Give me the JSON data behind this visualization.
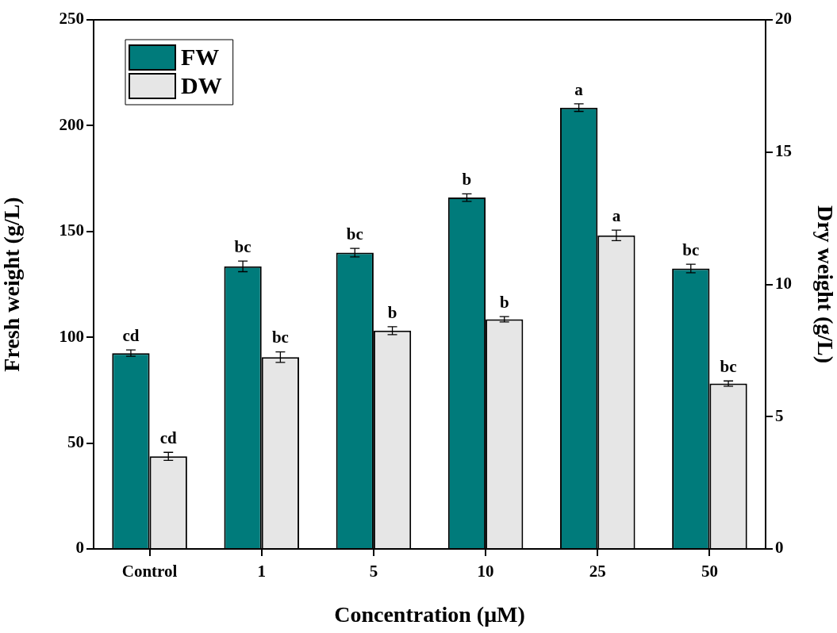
{
  "chart_data": {
    "type": "bar",
    "xlabel": "Concentration (μM)",
    "ylabel": "Fresh weight (g/L)",
    "y2label": "Dry weight (g/L)",
    "categories": [
      "Control",
      "1",
      "5",
      "10",
      "25",
      "50"
    ],
    "series": [
      {
        "name": "FW",
        "color": "#007b7b",
        "values": [
          92.5,
          133.5,
          140,
          166,
          208.5,
          132.5
        ],
        "errors": [
          1.5,
          2.5,
          2,
          1.8,
          1.8,
          2
        ],
        "value_labels": [
          "cd",
          "bc",
          "bc",
          "b",
          "a",
          "bc"
        ]
      },
      {
        "name": "DW",
        "color": "#e6e6e6",
        "axis": "y2",
        "values": [
          3.5,
          7.25,
          8.25,
          8.68,
          11.85,
          6.25
        ],
        "errors": [
          0.15,
          0.2,
          0.15,
          0.1,
          0.2,
          0.1
        ],
        "value_labels": [
          "cd",
          "bc",
          "b",
          "b",
          "a",
          "bc"
        ]
      }
    ],
    "ylim": [
      0,
      250
    ],
    "yticks": [
      0,
      50,
      100,
      150,
      200,
      250
    ],
    "y2lim": [
      0,
      20
    ],
    "y2ticks": [
      0,
      5,
      10,
      15,
      20
    ],
    "grid": false,
    "legend": "top left"
  }
}
